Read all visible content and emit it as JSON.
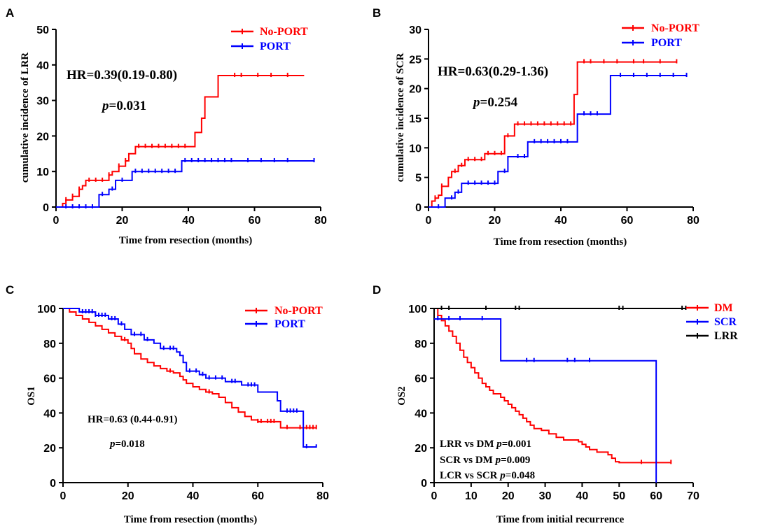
{
  "chart_data": [
    {
      "panel": "A",
      "type": "line",
      "title": "",
      "xlabel": "Time from resection (months)",
      "ylabel": "cumulative incidence of LRR",
      "xlim": [
        0,
        80
      ],
      "ylim": [
        0,
        50
      ],
      "xticks": [
        0,
        20,
        40,
        60,
        80
      ],
      "yticks": [
        0,
        10,
        20,
        30,
        40,
        50
      ],
      "legend": [
        "No-PORT",
        "PORT"
      ],
      "legend_position": "top-right",
      "annotations": [
        {
          "kind": "hr",
          "text": "HR=0.39(0.19-0.80)"
        },
        {
          "kind": "p",
          "text": "=0.031"
        }
      ],
      "series": [
        {
          "name": "No-PORT",
          "color": "#ff0000",
          "steps": [
            [
              0,
              0
            ],
            [
              2,
              1
            ],
            [
              3,
              2
            ],
            [
              5,
              3
            ],
            [
              7,
              5
            ],
            [
              8,
              6
            ],
            [
              9,
              7.5
            ],
            [
              16,
              9
            ],
            [
              17,
              10
            ],
            [
              19,
              11.5
            ],
            [
              21,
              13
            ],
            [
              22,
              15
            ],
            [
              24,
              17
            ],
            [
              42,
              21
            ],
            [
              44,
              25
            ],
            [
              45,
              31
            ],
            [
              49,
              37
            ],
            [
              75,
              37
            ]
          ],
          "censors": [
            3,
            5,
            7,
            10,
            12,
            14,
            16,
            19,
            21,
            25,
            27,
            29,
            31,
            33,
            35,
            37,
            39,
            54,
            56,
            61,
            65,
            70
          ]
        },
        {
          "name": "PORT",
          "color": "#0000ff",
          "steps": [
            [
              0,
              0
            ],
            [
              13,
              3.5
            ],
            [
              16,
              5
            ],
            [
              18,
              7.5
            ],
            [
              23,
              10
            ],
            [
              38,
              13
            ],
            [
              78,
              13
            ]
          ],
          "censors": [
            3,
            5,
            7,
            9,
            11,
            14,
            17,
            20,
            24,
            26,
            28,
            30,
            32,
            34,
            36,
            39,
            41,
            43,
            45,
            47,
            49,
            51,
            53,
            58,
            62,
            66,
            70,
            78
          ]
        }
      ]
    },
    {
      "panel": "B",
      "type": "line",
      "title": "",
      "xlabel": "Time from resection (months)",
      "ylabel": "cumulative incidence of SCR",
      "xlim": [
        0,
        80
      ],
      "ylim": [
        0,
        30
      ],
      "xticks": [
        0,
        20,
        40,
        60,
        80
      ],
      "yticks": [
        0,
        5,
        10,
        15,
        20,
        25,
        30
      ],
      "legend": [
        "No-PORT",
        "PORT"
      ],
      "legend_position": "top-right",
      "annotations": [
        {
          "kind": "hr",
          "text": "HR=0.63(0.29-1.36)"
        },
        {
          "kind": "p",
          "text": "=0.254"
        }
      ],
      "series": [
        {
          "name": "No-PORT",
          "color": "#ff0000",
          "steps": [
            [
              0,
              0
            ],
            [
              1,
              1
            ],
            [
              2,
              1.5
            ],
            [
              3,
              2
            ],
            [
              4,
              3.5
            ],
            [
              6,
              5
            ],
            [
              7,
              6
            ],
            [
              9,
              7
            ],
            [
              11,
              8
            ],
            [
              17,
              9
            ],
            [
              23,
              12
            ],
            [
              26,
              14
            ],
            [
              44,
              19
            ],
            [
              45,
              24.5
            ],
            [
              75,
              24.5
            ]
          ],
          "censors": [
            2,
            4,
            8,
            10,
            12,
            14,
            16,
            18,
            20,
            22,
            24,
            27,
            29,
            31,
            33,
            35,
            37,
            39,
            41,
            43,
            47,
            49,
            53,
            57,
            62,
            65,
            70,
            75
          ]
        },
        {
          "name": "PORT",
          "color": "#0000ff",
          "steps": [
            [
              0,
              0
            ],
            [
              5,
              1.5
            ],
            [
              8,
              2.5
            ],
            [
              10,
              4
            ],
            [
              21,
              6
            ],
            [
              24,
              8.5
            ],
            [
              30,
              11
            ],
            [
              45,
              15.7
            ],
            [
              55,
              22.2
            ],
            [
              78,
              22.2
            ]
          ],
          "censors": [
            3,
            7,
            9,
            12,
            14,
            16,
            18,
            20,
            23,
            27,
            29,
            32,
            34,
            36,
            38,
            40,
            42,
            47,
            49,
            51,
            58,
            62,
            66,
            70,
            74,
            78
          ]
        }
      ]
    },
    {
      "panel": "C",
      "type": "line",
      "title": "",
      "xlabel": "Time from resection (months)",
      "ylabel": "OS1",
      "xlim": [
        0,
        80
      ],
      "ylim": [
        0,
        100
      ],
      "xticks": [
        0,
        20,
        40,
        60,
        80
      ],
      "yticks": [
        0,
        20,
        40,
        60,
        80,
        100
      ],
      "legend": [
        "No-PORT",
        "PORT"
      ],
      "legend_position": "top-right",
      "annotations": [
        {
          "kind": "hr",
          "text": "HR=0.63 (0.44-0.91)"
        },
        {
          "kind": "p",
          "text": "=0.018"
        }
      ],
      "series": [
        {
          "name": "No-PORT",
          "color": "#ff0000",
          "steps": [
            [
              0,
              100
            ],
            [
              2,
              98
            ],
            [
              4,
              96
            ],
            [
              6,
              94
            ],
            [
              8,
              92
            ],
            [
              10,
              90
            ],
            [
              12,
              88
            ],
            [
              14,
              86
            ],
            [
              16,
              84
            ],
            [
              18,
              82
            ],
            [
              20,
              80
            ],
            [
              21,
              77
            ],
            [
              22,
              74
            ],
            [
              24,
              71
            ],
            [
              26,
              69
            ],
            [
              28,
              67
            ],
            [
              30,
              65.5
            ],
            [
              32,
              64
            ],
            [
              34,
              63
            ],
            [
              36,
              61
            ],
            [
              37,
              59
            ],
            [
              38,
              57
            ],
            [
              40,
              55
            ],
            [
              42,
              53.5
            ],
            [
              44,
              52
            ],
            [
              46,
              51
            ],
            [
              48,
              49
            ],
            [
              50,
              46
            ],
            [
              52,
              43
            ],
            [
              54,
              40.5
            ],
            [
              56,
              38
            ],
            [
              58,
              36
            ],
            [
              60,
              35
            ],
            [
              67,
              31.5
            ],
            [
              78,
              31.5
            ]
          ],
          "censors": [
            19,
            33,
            45,
            60,
            61,
            63,
            64,
            65,
            69,
            73,
            75,
            76,
            77,
            78
          ]
        },
        {
          "name": "PORT",
          "color": "#0000ff",
          "steps": [
            [
              0,
              100
            ],
            [
              5,
              98
            ],
            [
              10,
              96
            ],
            [
              14,
              94
            ],
            [
              17,
              91
            ],
            [
              19,
              88
            ],
            [
              21,
              85
            ],
            [
              25,
              82
            ],
            [
              28,
              80
            ],
            [
              30,
              77
            ],
            [
              35,
              75
            ],
            [
              36,
              73
            ],
            [
              37,
              69
            ],
            [
              38,
              64
            ],
            [
              42,
              62
            ],
            [
              44,
              60
            ],
            [
              50,
              58
            ],
            [
              55,
              56
            ],
            [
              60,
              52
            ],
            [
              66,
              47
            ],
            [
              67,
              41
            ],
            [
              73,
              41
            ],
            [
              74,
              20.5
            ],
            [
              78,
              22
            ]
          ],
          "censors": [
            6,
            7,
            8,
            9,
            10,
            11,
            12,
            13,
            15,
            16,
            18,
            22,
            24,
            26,
            31,
            33,
            34,
            39,
            41,
            43,
            45,
            47,
            49,
            52,
            53,
            57,
            58,
            59,
            69,
            70,
            71,
            72,
            75
          ]
        }
      ]
    },
    {
      "panel": "D",
      "type": "line",
      "title": "",
      "xlabel": "Time from initial recurrence",
      "ylabel": "OS2",
      "xlim": [
        0,
        70
      ],
      "ylim": [
        0,
        100
      ],
      "xticks": [
        0,
        10,
        20,
        30,
        40,
        50,
        60,
        70
      ],
      "yticks": [
        0,
        20,
        40,
        60,
        80,
        100
      ],
      "legend": [
        "DM",
        "SCR",
        "LRR"
      ],
      "legend_position": "top-right",
      "annotations": [
        {
          "kind": "p-line",
          "prefix": "LRR vs DM ",
          "value": "=0.001"
        },
        {
          "kind": "p-line",
          "prefix": "SCR vs DM ",
          "value": "=0.009"
        },
        {
          "kind": "p-line",
          "prefix": "LCR vs SCR ",
          "value": "=0.048"
        }
      ],
      "series": [
        {
          "name": "DM",
          "color": "#ff0000",
          "steps": [
            [
              0,
              100
            ],
            [
              1,
              96
            ],
            [
              2,
              93
            ],
            [
              3,
              90
            ],
            [
              4,
              87
            ],
            [
              5,
              84
            ],
            [
              6,
              80
            ],
            [
              7,
              76
            ],
            [
              8,
              72
            ],
            [
              9,
              69
            ],
            [
              10,
              66
            ],
            [
              11,
              63
            ],
            [
              12,
              60
            ],
            [
              13,
              57
            ],
            [
              14,
              55
            ],
            [
              15,
              53
            ],
            [
              16,
              51
            ],
            [
              18,
              49
            ],
            [
              19,
              47
            ],
            [
              20,
              45
            ],
            [
              21,
              43
            ],
            [
              22,
              41
            ],
            [
              23,
              39
            ],
            [
              24,
              37
            ],
            [
              25,
              35
            ],
            [
              26,
              33
            ],
            [
              27,
              31
            ],
            [
              29,
              30
            ],
            [
              31,
              28
            ],
            [
              33,
              26
            ],
            [
              35,
              24.5
            ],
            [
              39,
              23.5
            ],
            [
              40,
              22
            ],
            [
              41,
              20.5
            ],
            [
              42,
              19
            ],
            [
              44,
              17.5
            ],
            [
              47,
              16
            ],
            [
              48,
              14
            ],
            [
              49,
              12
            ],
            [
              50,
              11.5
            ],
            [
              64,
              11.5
            ]
          ],
          "censors": [
            56,
            64
          ]
        },
        {
          "name": "SCR",
          "color": "#0000ff",
          "steps": [
            [
              0,
              94
            ],
            [
              18,
              94
            ],
            [
              18,
              70
            ],
            [
              60,
              70
            ],
            [
              60,
              0
            ]
          ],
          "censors": [
            1,
            4,
            7,
            13,
            25,
            27,
            36,
            38,
            42
          ]
        },
        {
          "name": "LRR",
          "color": "#000000",
          "steps": [
            [
              0,
              100
            ],
            [
              68,
              100
            ]
          ],
          "censors": [
            2,
            4,
            14,
            22,
            23,
            50,
            51,
            67,
            68
          ]
        }
      ]
    }
  ]
}
